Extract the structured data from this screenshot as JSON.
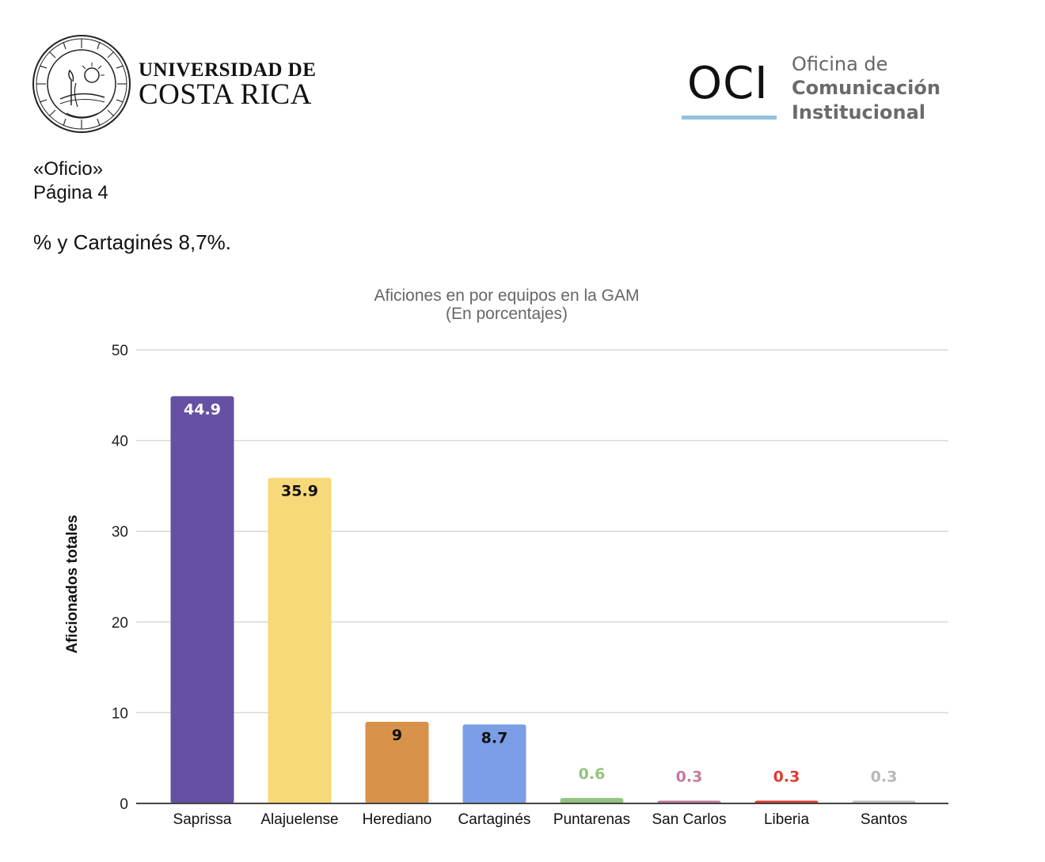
{
  "header": {
    "university_line1": "UNIVERSIDAD DE",
    "university_line2": "COSTA RICA",
    "seal_motto": "LUCEM ASPICIO",
    "seal_text": "UNIVERSIDAD DE COSTA RICA",
    "oci_mark": "OCI",
    "oci_line1": "Oficina de",
    "oci_line2": "Comunicación",
    "oci_line3": "Institucional"
  },
  "document": {
    "oficio": "«Oficio»",
    "page": "Página 4",
    "body_text": "% y Cartaginés 8,7%."
  },
  "colors": {
    "grid": "#d9d9d9",
    "axis": "#444444",
    "title": "#666666"
  },
  "chart_data": {
    "type": "bar",
    "title": "Aficiones en por equipos en la GAM",
    "subtitle": "(En porcentajes)",
    "xlabel": "",
    "ylabel": "Aficionados totales",
    "ylim": [
      0,
      50
    ],
    "yticks": [
      0,
      10,
      20,
      30,
      40,
      50
    ],
    "grid": true,
    "legend": "none",
    "categories": [
      "Saprissa",
      "Alajuelense",
      "Herediano",
      "Cartaginés",
      "Puntarenas",
      "San Carlos",
      "Liberia",
      "Santos"
    ],
    "values": [
      44.9,
      35.9,
      9,
      8.7,
      0.6,
      0.3,
      0.3,
      0.3
    ],
    "labels": [
      "44.9",
      "35.9",
      "9",
      "8.7",
      "0.6",
      "0.3",
      "0.3",
      "0.3"
    ],
    "bar_colors": [
      "#6550a3",
      "#f7d97a",
      "#d8924a",
      "#7b9ee7",
      "#93c47d",
      "#c27ba0",
      "#e03a2f",
      "#c0c0c0"
    ],
    "label_colors": [
      "#ffffff",
      "#111111",
      "#111111",
      "#111111",
      "#93c47d",
      "#c27ba0",
      "#e03a2f",
      "#b7b7b7"
    ]
  }
}
